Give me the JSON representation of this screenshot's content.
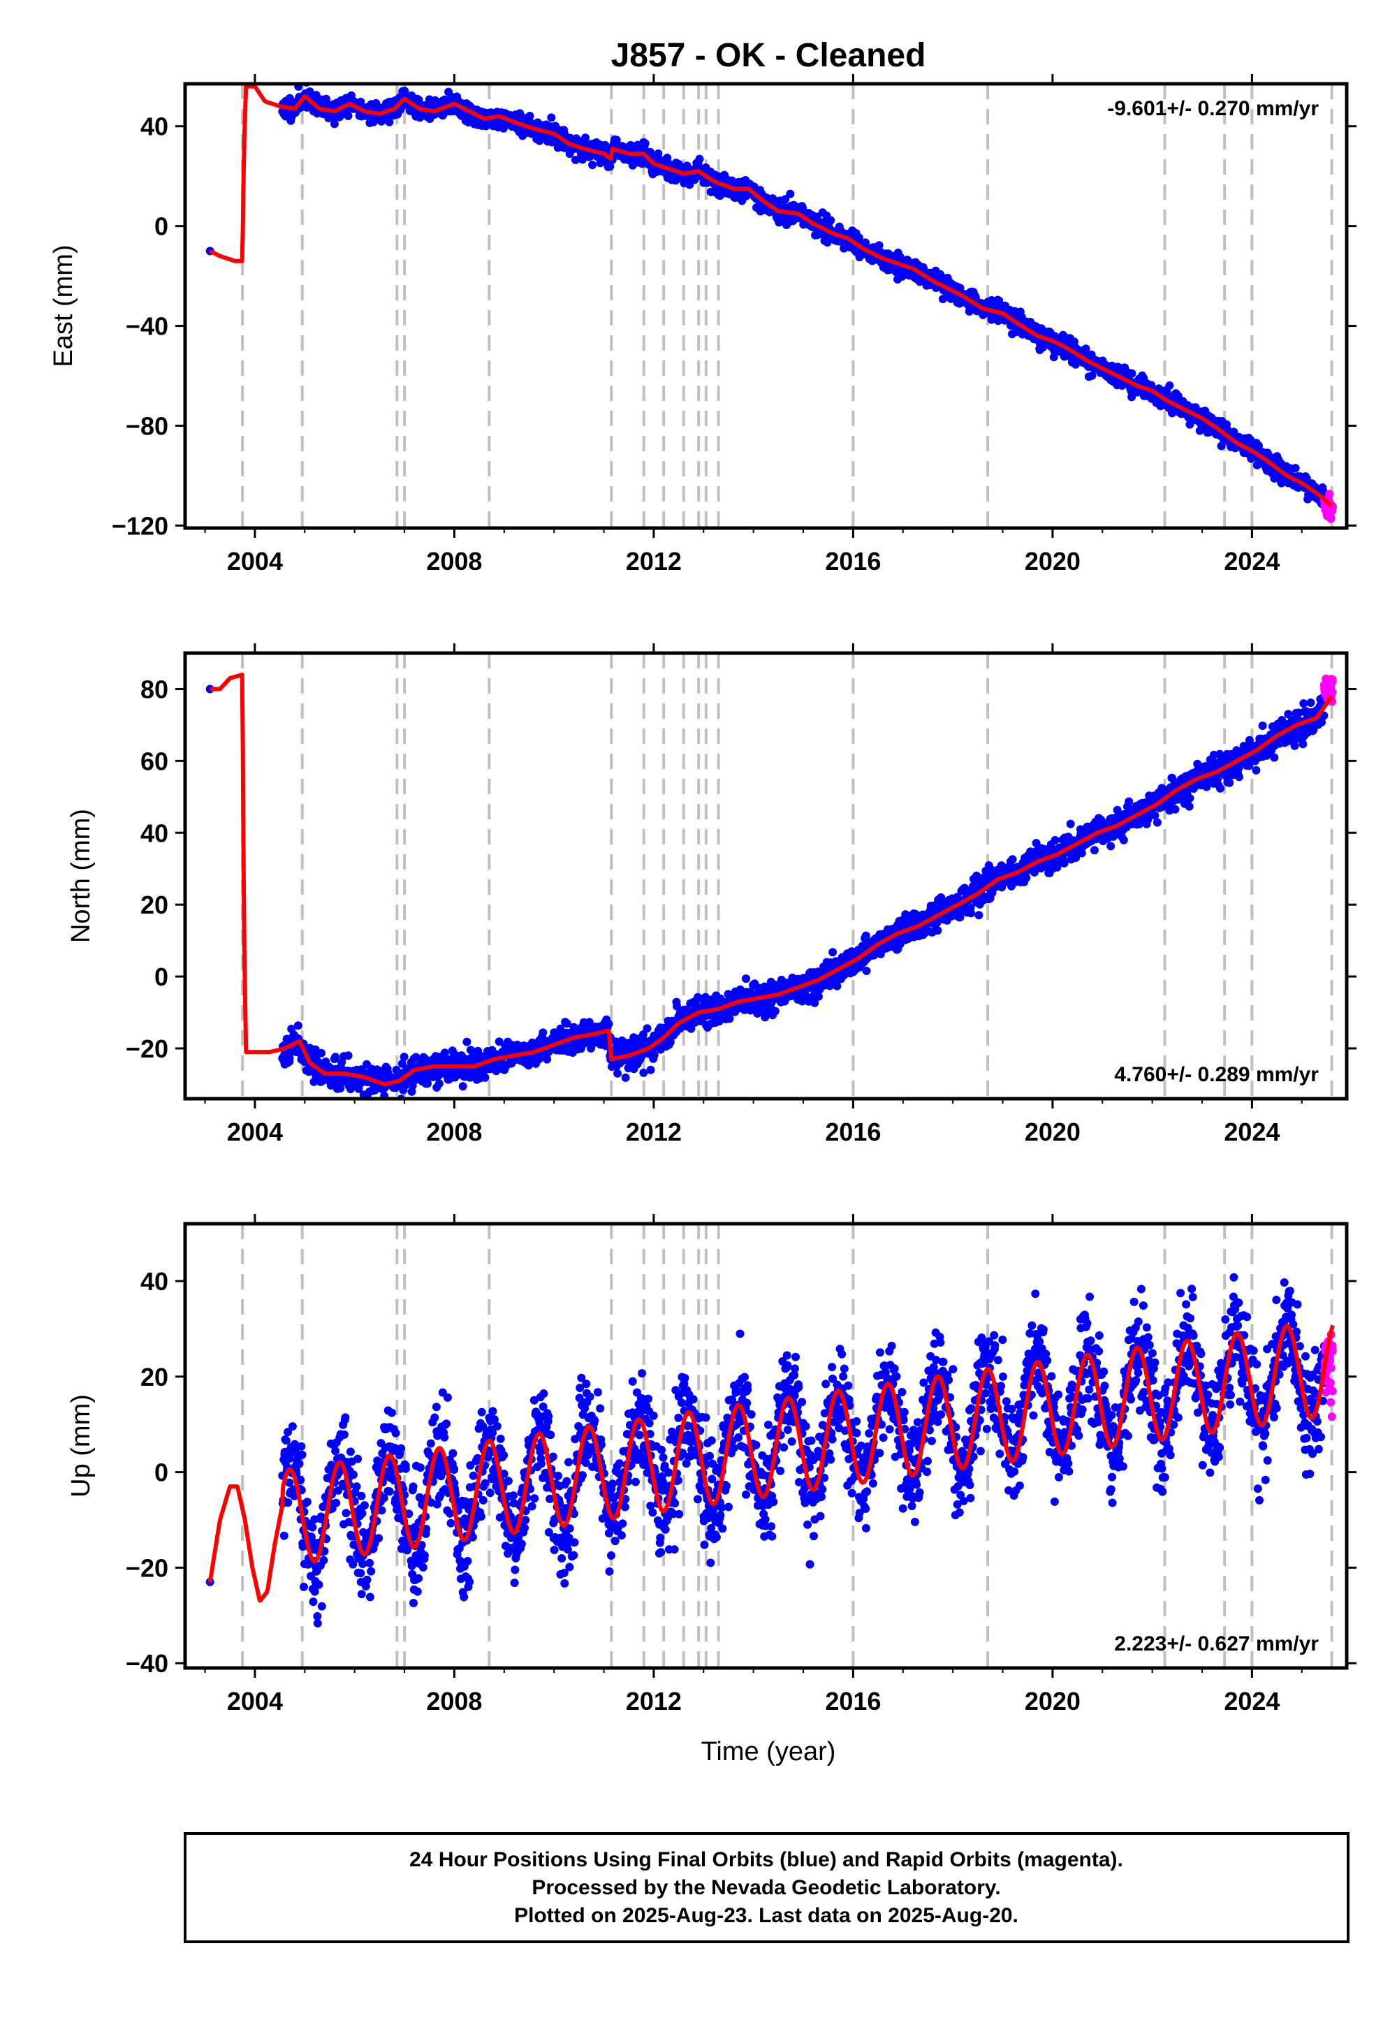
{
  "title": "J857  - OK - Cleaned",
  "footer": {
    "line1": "24 Hour Positions Using Final Orbits (blue) and Rapid Orbits (magenta).",
    "line2": "Processed by the Nevada Geodetic Laboratory.",
    "line3": "Plotted on 2025-Aug-23. Last data on 2025-Aug-20."
  },
  "colors": {
    "final_orbits": "#0000ff",
    "rapid_orbits": "#ff00ff",
    "model": "#ff0000",
    "event_lines": "#c0c0c0"
  },
  "chart_data": [
    {
      "type": "scatter",
      "ylabel": "East (mm)",
      "rate": "-9.601+/- 0.270 mm/yr",
      "rate_position": "top-right",
      "xlim": [
        2002.6,
        2025.9
      ],
      "ylim": [
        -121,
        57
      ],
      "yticks": [
        -120,
        -80,
        -40,
        0,
        40
      ],
      "ytick_labels": [
        "−120",
        "−80",
        "−40",
        "0",
        "40"
      ],
      "xticks": [
        2004,
        2008,
        2012,
        2016,
        2020,
        2024
      ],
      "xtick_labels": [
        "2004",
        "2008",
        "2012",
        "2016",
        "2020",
        "2024"
      ],
      "grid": false,
      "start_point": [
        2003.1,
        -10
      ],
      "model_points": [
        [
          2003.1,
          -10
        ],
        [
          2003.3,
          -12
        ],
        [
          2003.6,
          -14
        ],
        [
          2003.75,
          -14
        ],
        [
          2003.78,
          30
        ],
        [
          2003.82,
          56
        ],
        [
          2004.0,
          56
        ],
        [
          2004.2,
          50
        ],
        [
          2004.5,
          48
        ],
        [
          2004.8,
          47
        ],
        [
          2005.0,
          52
        ],
        [
          2005.3,
          47
        ],
        [
          2005.6,
          46
        ],
        [
          2005.9,
          49
        ],
        [
          2006.2,
          46
        ],
        [
          2006.5,
          45
        ],
        [
          2006.8,
          47
        ],
        [
          2007.0,
          51
        ],
        [
          2007.3,
          47
        ],
        [
          2007.6,
          46
        ],
        [
          2008.0,
          49
        ],
        [
          2008.3,
          46
        ],
        [
          2008.6,
          43
        ],
        [
          2008.9,
          44
        ],
        [
          2009.3,
          41
        ],
        [
          2009.6,
          39
        ],
        [
          2010.0,
          37
        ],
        [
          2010.3,
          33
        ],
        [
          2010.6,
          31
        ],
        [
          2011.0,
          29
        ],
        [
          2011.14,
          27
        ],
        [
          2011.17,
          31
        ],
        [
          2011.5,
          29
        ],
        [
          2011.8,
          29
        ],
        [
          2012.0,
          25
        ],
        [
          2012.3,
          23
        ],
        [
          2012.6,
          21
        ],
        [
          2012.9,
          22
        ],
        [
          2013.2,
          18
        ],
        [
          2013.6,
          15
        ],
        [
          2013.9,
          15
        ],
        [
          2014.2,
          10
        ],
        [
          2014.5,
          6
        ],
        [
          2014.9,
          5
        ],
        [
          2015.2,
          1
        ],
        [
          2015.6,
          -3
        ],
        [
          2015.9,
          -5
        ],
        [
          2016.2,
          -9
        ],
        [
          2016.6,
          -13
        ],
        [
          2016.9,
          -15
        ],
        [
          2017.2,
          -17
        ],
        [
          2017.6,
          -22
        ],
        [
          2017.9,
          -25
        ],
        [
          2018.2,
          -28
        ],
        [
          2018.6,
          -33
        ],
        [
          2019.0,
          -35
        ],
        [
          2019.3,
          -39
        ],
        [
          2019.7,
          -44
        ],
        [
          2020.0,
          -46
        ],
        [
          2020.3,
          -49
        ],
        [
          2020.7,
          -54
        ],
        [
          2021.0,
          -57
        ],
        [
          2021.3,
          -60
        ],
        [
          2021.7,
          -64
        ],
        [
          2022.0,
          -66
        ],
        [
          2022.3,
          -70
        ],
        [
          2022.7,
          -74
        ],
        [
          2023.0,
          -77
        ],
        [
          2023.3,
          -81
        ],
        [
          2023.7,
          -87
        ],
        [
          2024.0,
          -90
        ],
        [
          2024.3,
          -94
        ],
        [
          2024.7,
          -100
        ],
        [
          2025.0,
          -103
        ],
        [
          2025.3,
          -107
        ],
        [
          2025.6,
          -112
        ]
      ],
      "data_start": 2004.55,
      "data_end": 2025.45,
      "scatter_seed": 11,
      "scatter_noise_mm": 2.0,
      "rapid_range": [
        2025.45,
        2025.62
      ],
      "rapid_center_mm": -113
    },
    {
      "type": "scatter",
      "ylabel": "North (mm)",
      "rate": "4.760+/- 0.289 mm/yr",
      "rate_position": "bottom-right",
      "xlim": [
        2002.6,
        2025.9
      ],
      "ylim": [
        -34,
        90
      ],
      "yticks": [
        -20,
        0,
        20,
        40,
        60,
        80
      ],
      "ytick_labels": [
        "−20",
        "0",
        "20",
        "40",
        "60",
        "80"
      ],
      "xticks": [
        2004,
        2008,
        2012,
        2016,
        2020,
        2024
      ],
      "xtick_labels": [
        "2004",
        "2008",
        "2012",
        "2016",
        "2020",
        "2024"
      ],
      "grid": false,
      "start_point": [
        2003.1,
        80
      ],
      "model_points": [
        [
          2003.1,
          80
        ],
        [
          2003.3,
          80
        ],
        [
          2003.5,
          83
        ],
        [
          2003.75,
          84
        ],
        [
          2003.78,
          15
        ],
        [
          2003.82,
          -21
        ],
        [
          2004.3,
          -21
        ],
        [
          2004.6,
          -20
        ],
        [
          2004.9,
          -18
        ],
        [
          2005.1,
          -24
        ],
        [
          2005.4,
          -27
        ],
        [
          2005.8,
          -27
        ],
        [
          2006.2,
          -28
        ],
        [
          2006.6,
          -30
        ],
        [
          2006.9,
          -29
        ],
        [
          2007.2,
          -26
        ],
        [
          2007.6,
          -25
        ],
        [
          2008.0,
          -25
        ],
        [
          2008.4,
          -25
        ],
        [
          2008.8,
          -23
        ],
        [
          2009.2,
          -22
        ],
        [
          2009.6,
          -21
        ],
        [
          2010.0,
          -19
        ],
        [
          2010.4,
          -17
        ],
        [
          2010.8,
          -16
        ],
        [
          2011.1,
          -15
        ],
        [
          2011.15,
          -23
        ],
        [
          2011.5,
          -22
        ],
        [
          2011.9,
          -20
        ],
        [
          2012.2,
          -17
        ],
        [
          2012.5,
          -13
        ],
        [
          2012.9,
          -10
        ],
        [
          2013.3,
          -9
        ],
        [
          2013.7,
          -7
        ],
        [
          2014.1,
          -6
        ],
        [
          2014.5,
          -5
        ],
        [
          2014.9,
          -3
        ],
        [
          2015.3,
          -1
        ],
        [
          2015.7,
          2
        ],
        [
          2016.1,
          5
        ],
        [
          2016.5,
          9
        ],
        [
          2016.9,
          12
        ],
        [
          2017.3,
          14
        ],
        [
          2017.7,
          17
        ],
        [
          2018.1,
          20
        ],
        [
          2018.5,
          23
        ],
        [
          2018.9,
          27
        ],
        [
          2019.3,
          29
        ],
        [
          2019.7,
          32
        ],
        [
          2020.1,
          34
        ],
        [
          2020.5,
          37
        ],
        [
          2020.9,
          40
        ],
        [
          2021.3,
          42
        ],
        [
          2021.7,
          45
        ],
        [
          2022.1,
          48
        ],
        [
          2022.5,
          52
        ],
        [
          2022.9,
          55
        ],
        [
          2023.3,
          57
        ],
        [
          2023.7,
          60
        ],
        [
          2024.1,
          63
        ],
        [
          2024.5,
          67
        ],
        [
          2024.9,
          70
        ],
        [
          2025.3,
          72
        ],
        [
          2025.6,
          78
        ]
      ],
      "data_start": 2004.55,
      "data_end": 2025.45,
      "scatter_seed": 23,
      "scatter_noise_mm": 2.0,
      "rapid_range": [
        2025.45,
        2025.62
      ],
      "rapid_center_mm": 80
    },
    {
      "type": "scatter",
      "ylabel": "Up (mm)",
      "xlabel": "Time (year)",
      "rate": "2.223+/- 0.627 mm/yr",
      "rate_position": "bottom-right",
      "xlim": [
        2002.6,
        2025.9
      ],
      "ylim": [
        -41,
        52
      ],
      "yticks": [
        -40,
        -20,
        0,
        20,
        40
      ],
      "ytick_labels": [
        "−40",
        "−20",
        "0",
        "20",
        "40"
      ],
      "xticks": [
        2004,
        2008,
        2012,
        2016,
        2020,
        2024
      ],
      "xtick_labels": [
        "2004",
        "2008",
        "2012",
        "2016",
        "2020",
        "2024"
      ],
      "grid": false,
      "start_point": [
        2003.1,
        -23
      ],
      "pre_model_points": [
        [
          2003.1,
          -23
        ],
        [
          2003.3,
          -10
        ],
        [
          2003.5,
          -3
        ],
        [
          2003.65,
          -3
        ],
        [
          2003.8,
          -10
        ],
        [
          2003.95,
          -20
        ],
        [
          2004.1,
          -27
        ],
        [
          2004.25,
          -25
        ],
        [
          2004.4,
          -15
        ],
        [
          2004.55,
          -7
        ]
      ],
      "model": {
        "start": 2004.55,
        "end": 2025.62,
        "base_at_2004": -10.5,
        "trend_mm_per_yr": 1.5,
        "amplitude_mm": 10,
        "annual_peak_year_fraction": 0.7
      },
      "data_start": 2004.55,
      "data_end": 2025.45,
      "scatter_seed": 37,
      "scatter_noise_mm": 5.5,
      "rapid_range": [
        2025.45,
        2025.62
      ],
      "rapid_center_mm": 22
    }
  ],
  "event_lines": [
    2003.75,
    2004.95,
    2006.85,
    2007.0,
    2008.7,
    2011.15,
    2011.8,
    2012.2,
    2012.6,
    2012.9,
    2013.05,
    2013.3,
    2016.0,
    2018.7,
    2022.25,
    2023.45,
    2024.0,
    2025.6
  ]
}
